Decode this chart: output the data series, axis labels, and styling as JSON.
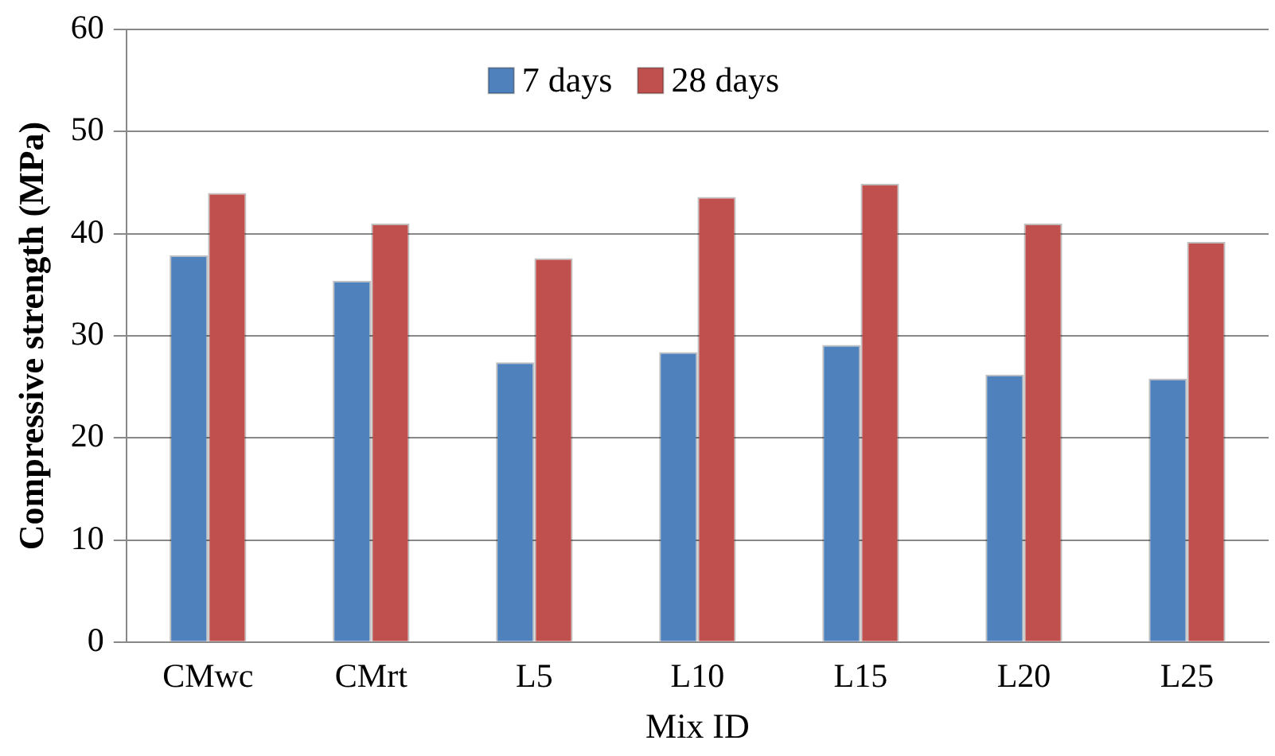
{
  "chart_data": {
    "type": "bar",
    "xlabel": "Mix ID",
    "ylabel": "Compressive strength (MPa)",
    "categories": [
      "CMwc",
      "CMrt",
      "L5",
      "L10",
      "L15",
      "L20",
      "L25"
    ],
    "series": [
      {
        "name": "7 days",
        "color": "#4f81bd",
        "values": [
          37.9,
          35.4,
          27.4,
          28.4,
          29.1,
          26.2,
          25.8
        ]
      },
      {
        "name": "28 days",
        "color": "#c0504d",
        "values": [
          44.0,
          41.0,
          37.6,
          43.6,
          44.9,
          41.0,
          39.2
        ]
      }
    ],
    "ylim": [
      0,
      60
    ],
    "yticks": [
      0,
      10,
      20,
      30,
      40,
      50,
      60
    ],
    "grid": "y",
    "legend": "top"
  }
}
